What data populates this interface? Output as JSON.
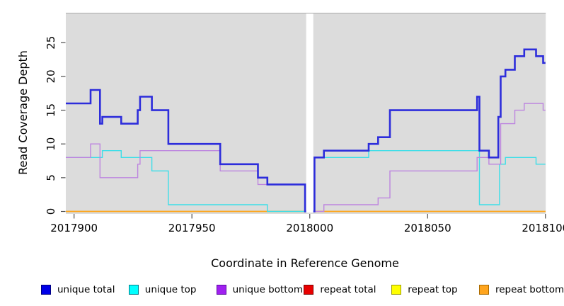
{
  "chart_data": {
    "type": "line",
    "subtype": "step-coverage",
    "title": "",
    "xlabel": "Coordinate in Reference Genome",
    "ylabel": "Read Coverage Depth",
    "x_ticks": [
      2017900,
      2017950,
      2018000,
      2018050,
      2018100
    ],
    "y_ticks": [
      0,
      5,
      10,
      15,
      20,
      25
    ],
    "x_range": [
      2017896.5,
      2018100
    ],
    "y_range": [
      0,
      29.4
    ],
    "grid": false,
    "legend_position": "bottom",
    "plot_bg": "#DCDCDC",
    "page_bg": "#FFFFFF",
    "gap_region": {
      "x_start": 2017998,
      "x_end": 2018002
    },
    "draw_order": [
      3,
      4,
      5,
      1,
      2,
      0
    ],
    "series": [
      {
        "name": "unique total",
        "color": "#2D2DDB",
        "legend_fill": "#0000E8",
        "legend_border": "#000080",
        "line_width": 2.6,
        "x_end": 2018100,
        "steps": [
          [
            2017896.5,
            16
          ],
          [
            2017907,
            18
          ],
          [
            2017911,
            13
          ],
          [
            2017912,
            14
          ],
          [
            2017920,
            13
          ],
          [
            2017927,
            15
          ],
          [
            2017928,
            17
          ],
          [
            2017933,
            15
          ],
          [
            2017940,
            10
          ],
          [
            2017962,
            7
          ],
          [
            2017978,
            5
          ],
          [
            2017982,
            4
          ],
          [
            2017998,
            0
          ],
          [
            2018002,
            8
          ],
          [
            2018006,
            9
          ],
          [
            2018025,
            10
          ],
          [
            2018029,
            11
          ],
          [
            2018034,
            15
          ],
          [
            2018071,
            17
          ],
          [
            2018072,
            9
          ],
          [
            2018076,
            8
          ],
          [
            2018080,
            14
          ],
          [
            2018081,
            20
          ],
          [
            2018083,
            21
          ],
          [
            2018087,
            23
          ],
          [
            2018091,
            24
          ],
          [
            2018096,
            23
          ],
          [
            2018099,
            22
          ]
        ]
      },
      {
        "name": "unique top",
        "color": "#3CDEE8",
        "legend_fill": "#00FFFF",
        "legend_border": "#007B8A",
        "line_width": 1.4,
        "x_end": 2018100,
        "steps": [
          [
            2017896.5,
            8
          ],
          [
            2017912,
            9
          ],
          [
            2017920,
            8
          ],
          [
            2017933,
            6
          ],
          [
            2017940,
            1
          ],
          [
            2017982,
            0
          ],
          [
            2018002,
            8
          ],
          [
            2018025,
            9
          ],
          [
            2018072,
            1
          ],
          [
            2018080.5,
            7
          ],
          [
            2018083,
            8
          ],
          [
            2018096,
            7
          ]
        ]
      },
      {
        "name": "unique bottom",
        "color": "#BD85DF",
        "legend_fill": "#A020F0",
        "legend_border": "#5A0AA0",
        "line_width": 1.4,
        "x_end": 2018100,
        "steps": [
          [
            2017896.5,
            8
          ],
          [
            2017907,
            10
          ],
          [
            2017911,
            5
          ],
          [
            2017927,
            7
          ],
          [
            2017928,
            9
          ],
          [
            2017962,
            6
          ],
          [
            2017978,
            4
          ],
          [
            2017998,
            0
          ],
          [
            2018006,
            1
          ],
          [
            2018029,
            2
          ],
          [
            2018034,
            6
          ],
          [
            2018071,
            8
          ],
          [
            2018076,
            7
          ],
          [
            2018081,
            13
          ],
          [
            2018087,
            15
          ],
          [
            2018091,
            16
          ],
          [
            2018099,
            15
          ]
        ]
      },
      {
        "name": "repeat total",
        "color": "#E03030",
        "legend_fill": "#E80000",
        "legend_border": "#7E0000",
        "line_width": 1.4,
        "x_end": 2018100,
        "steps": [
          [
            2017896.5,
            0
          ]
        ]
      },
      {
        "name": "repeat top",
        "color": "#F2F22A",
        "legend_fill": "#FFFF00",
        "legend_border": "#9B9B00",
        "line_width": 1.4,
        "x_end": 2018100,
        "steps": [
          [
            2017896.5,
            0
          ]
        ]
      },
      {
        "name": "repeat bottom",
        "color": "#FFA519",
        "legend_fill": "#FFA51E",
        "legend_border": "#A86A00",
        "line_width": 1.6,
        "x_end": 2018100,
        "steps": [
          [
            2017896.5,
            0
          ]
        ]
      }
    ]
  }
}
